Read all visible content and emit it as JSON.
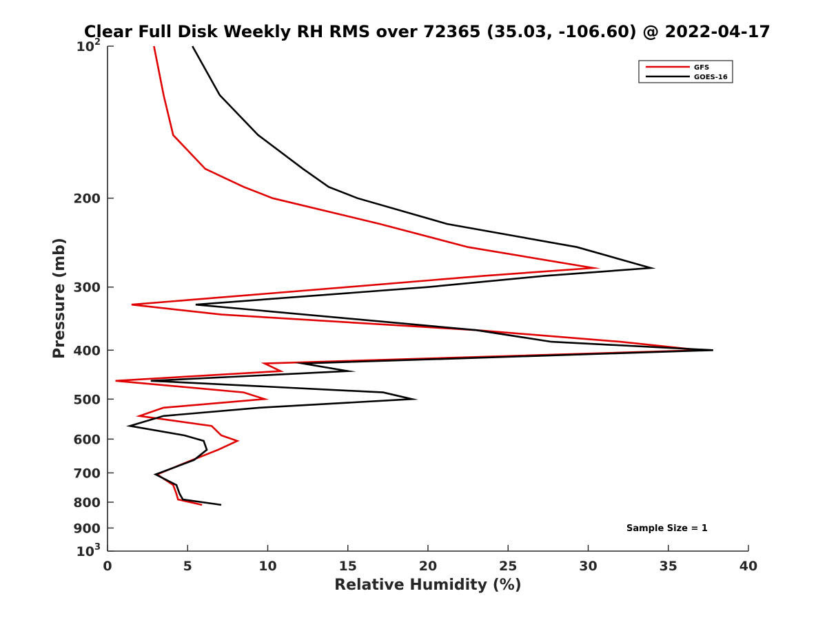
{
  "chart_data": {
    "type": "line",
    "title": "Clear Full Disk Weekly RH RMS over 72365 (35.03, -106.60) @ 2022-04-17",
    "xlabel": "Relative Humidity (%)",
    "ylabel": "Pressure (mb)",
    "xlim": [
      0,
      40
    ],
    "ylim": [
      100,
      1000
    ],
    "y_scale": "log",
    "y_reversed": true,
    "grid": false,
    "x_ticks": [
      {
        "value": 0,
        "label": "0"
      },
      {
        "value": 5,
        "label": "5"
      },
      {
        "value": 10,
        "label": "10"
      },
      {
        "value": 15,
        "label": "15"
      },
      {
        "value": 20,
        "label": "20"
      },
      {
        "value": 25,
        "label": "25"
      },
      {
        "value": 30,
        "label": "30"
      },
      {
        "value": 35,
        "label": "35"
      },
      {
        "value": 40,
        "label": "40"
      }
    ],
    "y_ticks": [
      {
        "value": 100,
        "base": "10",
        "exp": "2"
      },
      {
        "value": 200,
        "base": "200",
        "exp": ""
      },
      {
        "value": 300,
        "base": "300",
        "exp": ""
      },
      {
        "value": 400,
        "base": "400",
        "exp": ""
      },
      {
        "value": 500,
        "base": "500",
        "exp": ""
      },
      {
        "value": 600,
        "base": "600",
        "exp": ""
      },
      {
        "value": 700,
        "base": "700",
        "exp": ""
      },
      {
        "value": 800,
        "base": "800",
        "exp": ""
      },
      {
        "value": 900,
        "base": "900",
        "exp": ""
      },
      {
        "value": 1000,
        "base": "10",
        "exp": "3"
      }
    ],
    "legend_position": "top-right",
    "annotation": "Sample Size = 1",
    "series": [
      {
        "name": "GFS",
        "color": "#e00000",
        "points": [
          [
            2.9,
            100
          ],
          [
            3.5,
            125
          ],
          [
            4.1,
            150
          ],
          [
            6.1,
            175
          ],
          [
            8.5,
            190
          ],
          [
            10.3,
            200
          ],
          [
            17.0,
            225
          ],
          [
            22.5,
            250
          ],
          [
            30.3,
            275
          ],
          [
            23.5,
            285
          ],
          [
            15.0,
            300
          ],
          [
            1.5,
            325
          ],
          [
            7.1,
            340
          ],
          [
            23.0,
            365
          ],
          [
            32.0,
            385
          ],
          [
            37.0,
            400
          ],
          [
            9.8,
            425
          ],
          [
            10.8,
            440
          ],
          [
            0.5,
            460
          ],
          [
            8.5,
            485
          ],
          [
            9.8,
            500
          ],
          [
            3.5,
            520
          ],
          [
            2.0,
            540
          ],
          [
            6.5,
            565
          ],
          [
            7.1,
            590
          ],
          [
            8.1,
            605
          ],
          [
            6.9,
            630
          ],
          [
            5.3,
            660
          ],
          [
            3.8,
            690
          ],
          [
            3.1,
            705
          ],
          [
            4.1,
            740
          ],
          [
            4.3,
            770
          ],
          [
            4.4,
            790
          ],
          [
            5.9,
            810
          ]
        ]
      },
      {
        "name": "GOES-16",
        "color": "#000000",
        "points": [
          [
            5.3,
            100
          ],
          [
            7.0,
            125
          ],
          [
            9.4,
            150
          ],
          [
            12.2,
            175
          ],
          [
            13.8,
            190
          ],
          [
            15.6,
            200
          ],
          [
            21.2,
            225
          ],
          [
            29.3,
            250
          ],
          [
            33.9,
            275
          ],
          [
            27.3,
            285
          ],
          [
            20.0,
            300
          ],
          [
            5.5,
            325
          ],
          [
            23.0,
            365
          ],
          [
            27.7,
            385
          ],
          [
            37.8,
            400
          ],
          [
            12.2,
            425
          ],
          [
            15.0,
            440
          ],
          [
            2.7,
            460
          ],
          [
            17.2,
            485
          ],
          [
            19.0,
            500
          ],
          [
            9.5,
            520
          ],
          [
            3.5,
            540
          ],
          [
            1.4,
            565
          ],
          [
            4.8,
            590
          ],
          [
            6.0,
            605
          ],
          [
            6.2,
            630
          ],
          [
            5.4,
            660
          ],
          [
            3.0,
            705
          ],
          [
            4.3,
            740
          ],
          [
            4.5,
            770
          ],
          [
            4.7,
            790
          ],
          [
            7.1,
            810
          ]
        ]
      }
    ]
  }
}
